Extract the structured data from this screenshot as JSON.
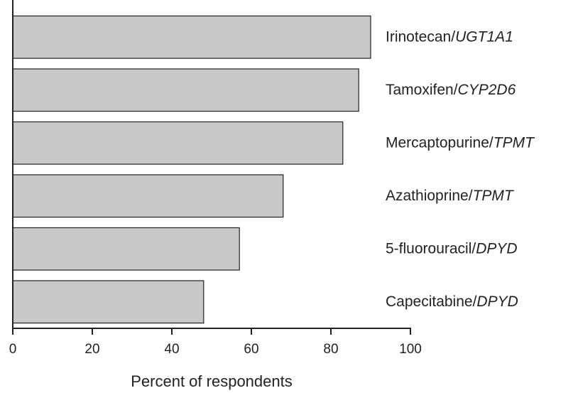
{
  "chart_data": {
    "type": "bar",
    "orientation": "horizontal",
    "categories": [
      "Irinotecan/UGT1A1",
      "Tamoxifen/CYP2D6",
      "Mercaptopurine/TPMT",
      "Azathioprine/TPMT",
      "5-fluorouracil/DPYD",
      "Capecitabine/DPYD"
    ],
    "values": [
      90,
      87,
      83,
      68,
      57,
      48
    ],
    "color": "#c8c8c8",
    "x_label": "Percent of respondents",
    "xlim": [
      0,
      100
    ],
    "xticks": [
      0,
      20,
      40,
      60,
      80,
      100
    ],
    "grid": false
  }
}
